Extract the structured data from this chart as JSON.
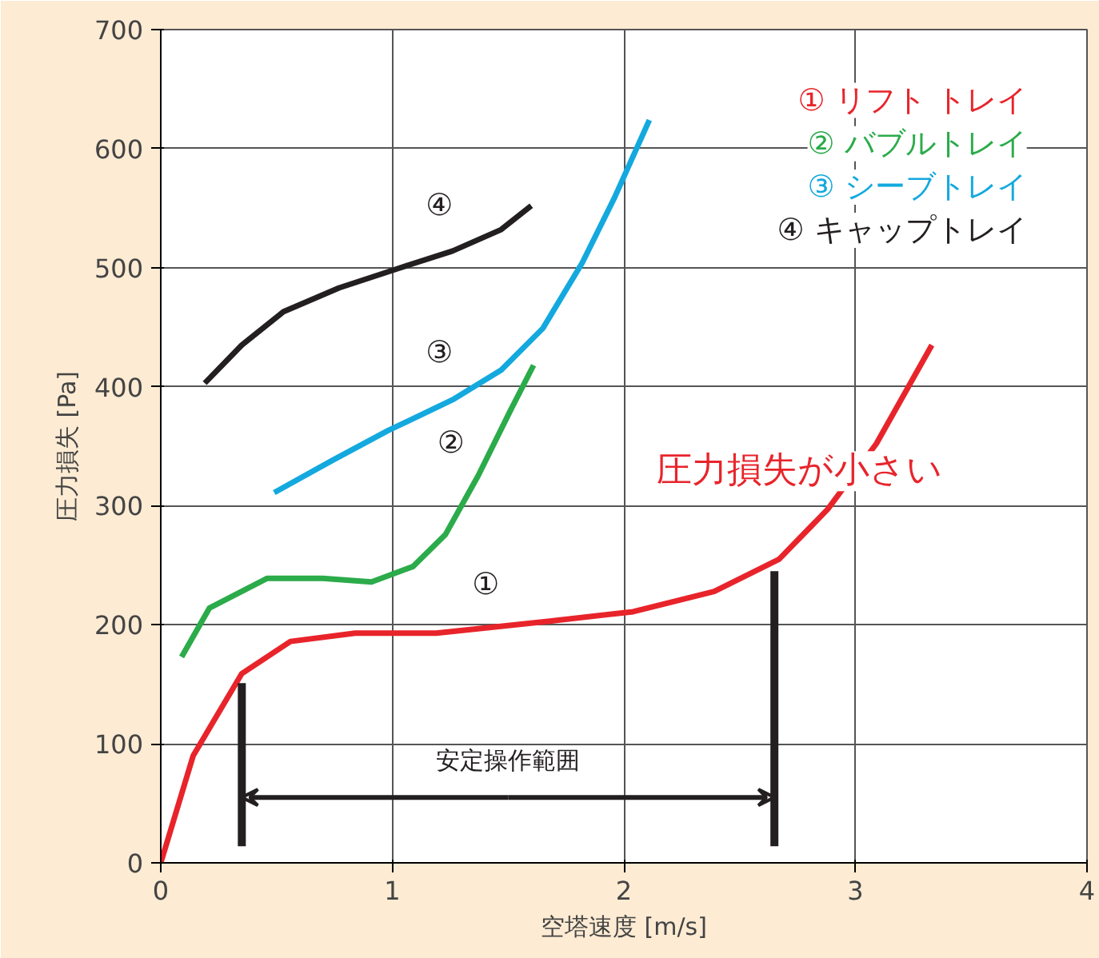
{
  "chart_data": {
    "type": "line",
    "xlabel": "空塔速度 [m/s]",
    "ylabel": "圧力損失 [Pa]",
    "xlim": [
      0,
      4
    ],
    "ylim": [
      0,
      700
    ],
    "xticks": [
      0,
      1,
      2,
      3,
      4
    ],
    "yticks": [
      0,
      100,
      200,
      300,
      400,
      500,
      600,
      700
    ],
    "grid": true,
    "legend": "top right",
    "line_style": "solid",
    "marker": "none",
    "series": [
      {
        "name": "① リフト トレイ",
        "color": "#e8242b",
        "x": [
          0,
          0.14,
          0.35,
          0.56,
          0.84,
          1.19,
          1.68,
          2.04,
          2.39,
          2.67,
          2.88,
          3.09,
          3.33
        ],
        "values": [
          0,
          90,
          159,
          186,
          193,
          193,
          203,
          211,
          228,
          255,
          297,
          352,
          435
        ]
      },
      {
        "name": "② バブルトレイ",
        "color": "#2bab4a",
        "x": [
          0.09,
          0.21,
          0.46,
          0.7,
          0.91,
          1.09,
          1.23,
          1.37,
          1.51,
          1.61
        ],
        "values": [
          173,
          214,
          239,
          239,
          236,
          249,
          276,
          325,
          380,
          418
        ]
      },
      {
        "name": "③ シーブトレイ",
        "color": "#13a9de",
        "x": [
          0.49,
          0.74,
          0.98,
          1.26,
          1.47,
          1.65,
          1.82,
          1.96,
          2.11
        ],
        "values": [
          311,
          338,
          363,
          389,
          414,
          449,
          504,
          559,
          624
        ]
      },
      {
        "name": "④ キャップトレイ",
        "color": "#231f20",
        "x": [
          0.19,
          0.35,
          0.53,
          0.77,
          1.02,
          1.26,
          1.47,
          1.6
        ],
        "values": [
          403,
          435,
          463,
          483,
          499,
          514,
          532,
          552
        ]
      }
    ],
    "ref_lines": [
      {
        "axis": "x",
        "value": 0.35,
        "color": "#231f20"
      },
      {
        "axis": "x",
        "value": 2.65,
        "color": "#231f20"
      }
    ],
    "annotations": [
      {
        "text": "④",
        "x": 1.3,
        "y": 517
      },
      {
        "text": "③",
        "x": 1.3,
        "y": 394
      },
      {
        "text": "②",
        "x": 1.35,
        "y": 318
      },
      {
        "text": "①",
        "x": 1.5,
        "y": 199
      },
      {
        "text": "安定操作範囲",
        "x": 2.65,
        "y": 55
      },
      "圧力損失が小さい"
    ]
  }
}
